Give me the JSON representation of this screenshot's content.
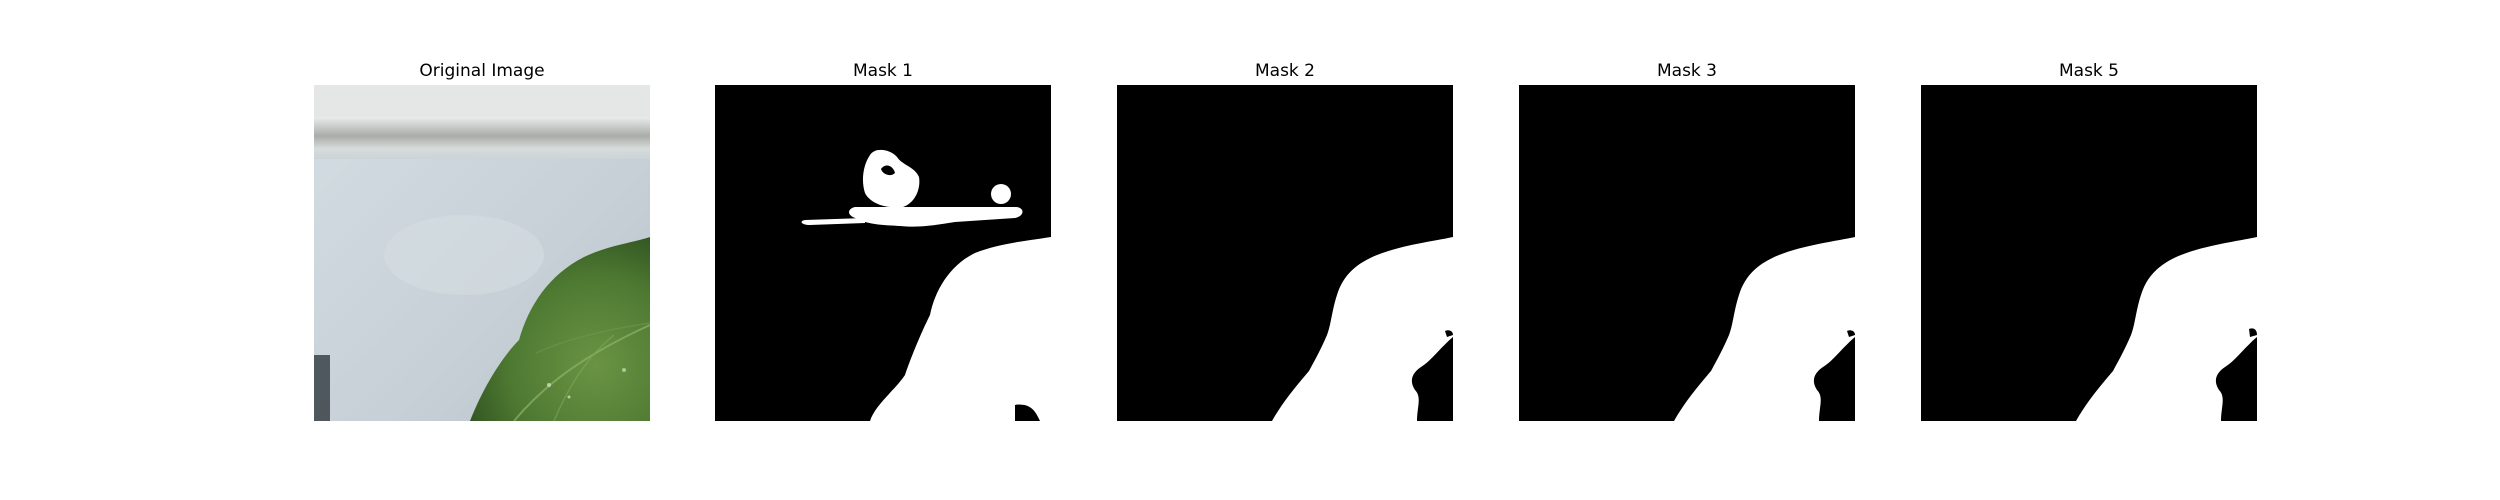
{
  "figure": {
    "panels": [
      {
        "title": "Original Image",
        "kind": "photo",
        "content": "close-up photo: green leafy plant in lower right corner against a pale grey-blue wall with a horizontal shelf edge across the top"
      },
      {
        "title": "Mask 1",
        "kind": "binary-mask"
      },
      {
        "title": "Mask 2",
        "kind": "binary-mask"
      },
      {
        "title": "Mask 3",
        "kind": "binary-mask"
      },
      {
        "title": "Mask 5",
        "kind": "binary-mask"
      }
    ]
  },
  "colors": {
    "mask_background": "#000000",
    "mask_foreground": "#ffffff",
    "figure_background": "#ffffff",
    "leaf_green": "#4f7a34",
    "wall": "#c9d3d9"
  }
}
